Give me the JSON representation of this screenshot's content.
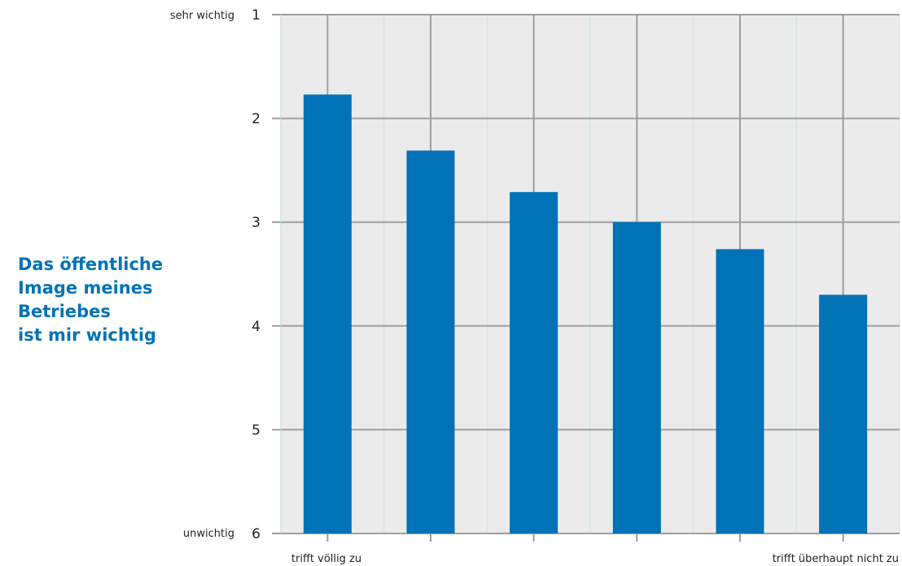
{
  "title_lines": [
    "Das öffentliche",
    "Image meines",
    "Betriebes",
    "ist mir wichtig"
  ],
  "colors": {
    "bar": "#0072B6",
    "title": "#0072B6",
    "plot_background": "#EBEBEB",
    "grid": "#9E9E9E"
  },
  "chart_data": {
    "type": "bar",
    "categories": [
      "trifft völlig zu",
      "",
      "",
      "",
      "",
      "trifft überhaupt nicht zu"
    ],
    "values": [
      1.77,
      2.31,
      2.71,
      3.0,
      3.26,
      3.7
    ],
    "ylim": [
      1,
      6
    ],
    "y_inverted": true,
    "yticks": [
      "1",
      "2",
      "3",
      "4",
      "5",
      "6"
    ],
    "y_top_label": "sehr wichtig",
    "y_bottom_label": "unwichtig",
    "grid": true
  }
}
